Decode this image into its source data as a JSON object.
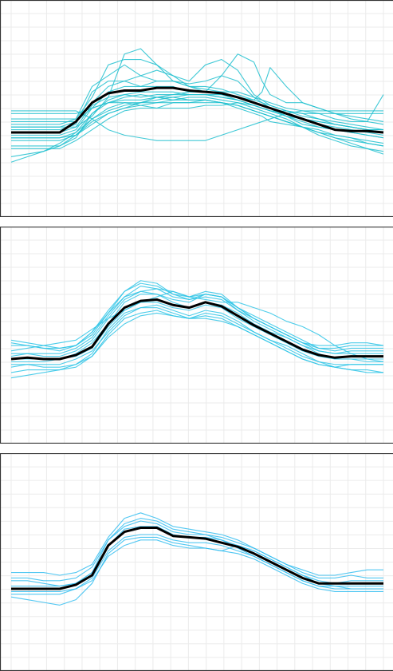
{
  "colors": {
    "grid": "#ebebeb",
    "frame": "#333333",
    "mean": "#000000",
    "panel_1_series": "#1fbfcf",
    "panel_2_series": "#2ec4e6",
    "panel_3_series": "#33bdf0"
  },
  "chart_data": [
    {
      "type": "line",
      "title": "",
      "xlabel": "",
      "ylabel": "",
      "grid": true,
      "legend": "none",
      "xlim": [
        0,
        23
      ],
      "ylim": [
        0,
        8
      ],
      "x": [
        0,
        1,
        2,
        3,
        4,
        5,
        6,
        7,
        8,
        9,
        10,
        11,
        12,
        13,
        14,
        15,
        15.5,
        16,
        17,
        18,
        19,
        20,
        21,
        22,
        23
      ],
      "mean": [
        3.1,
        3.1,
        3.1,
        3.1,
        3.5,
        4.2,
        4.55,
        4.65,
        4.65,
        4.75,
        4.75,
        4.65,
        4.6,
        4.55,
        4.4,
        4.2,
        4.1,
        4.0,
        3.8,
        3.6,
        3.4,
        3.2,
        3.15,
        3.15,
        3.1
      ],
      "series": [
        {
          "values": [
            3.6,
            3.6,
            3.6,
            3.6,
            3.6,
            4.8,
            5.2,
            5.6,
            5.2,
            5.0,
            5.0,
            4.8,
            4.8,
            4.7,
            4.5,
            4.3,
            4.2,
            4.1,
            3.9,
            3.8,
            3.6,
            3.5,
            3.4,
            3.3,
            3.2
          ]
        },
        {
          "values": [
            3.4,
            3.4,
            3.4,
            3.4,
            3.6,
            4.4,
            5.6,
            5.8,
            5.8,
            5.6,
            5.0,
            4.9,
            5.0,
            5.2,
            5.0,
            4.4,
            4.2,
            4.0,
            3.8,
            3.6,
            3.5,
            3.4,
            3.3,
            3.2,
            3.2
          ]
        },
        {
          "values": [
            3.2,
            3.2,
            3.2,
            3.2,
            3.4,
            4.6,
            5.0,
            5.0,
            5.2,
            5.4,
            5.2,
            5.0,
            5.6,
            5.8,
            5.4,
            4.5,
            4.3,
            4.1,
            3.9,
            3.7,
            3.6,
            3.4,
            3.3,
            3.2,
            3.2
          ]
        },
        {
          "values": [
            3.0,
            3.0,
            3.0,
            3.0,
            3.2,
            4.0,
            4.2,
            4.3,
            4.3,
            4.4,
            4.5,
            4.5,
            4.5,
            4.4,
            4.3,
            4.1,
            4.0,
            3.9,
            3.8,
            3.6,
            3.4,
            3.3,
            3.2,
            3.1,
            3.0
          ]
        },
        {
          "values": [
            2.8,
            2.8,
            2.8,
            2.8,
            3.0,
            3.6,
            4.0,
            4.2,
            4.2,
            4.2,
            4.2,
            4.2,
            4.2,
            4.2,
            4.1,
            3.9,
            3.8,
            3.7,
            3.5,
            3.3,
            3.1,
            3.0,
            2.9,
            2.8,
            2.7
          ]
        },
        {
          "values": [
            2.5,
            2.5,
            2.5,
            2.5,
            2.8,
            3.2,
            3.6,
            3.9,
            4.0,
            4.0,
            4.2,
            4.2,
            4.3,
            4.2,
            4.0,
            3.8,
            3.7,
            3.5,
            3.4,
            3.3,
            3.2,
            3.0,
            2.9,
            2.7,
            2.6
          ]
        },
        {
          "values": [
            2.2,
            2.3,
            2.4,
            2.6,
            3.0,
            3.5,
            3.8,
            4.0,
            4.1,
            4.2,
            4.3,
            4.3,
            4.3,
            4.2,
            4.1,
            3.9,
            3.8,
            3.7,
            3.5,
            3.3,
            3.0,
            2.8,
            2.6,
            2.5,
            2.4
          ]
        },
        {
          "values": [
            2.0,
            2.2,
            2.4,
            2.7,
            3.1,
            3.6,
            3.9,
            4.1,
            4.2,
            4.4,
            4.3,
            4.4,
            4.4,
            4.3,
            4.2,
            4.0,
            3.9,
            3.8,
            3.6,
            3.3,
            3.1,
            2.9,
            2.7,
            2.5,
            2.3
          ]
        },
        {
          "values": [
            3.8,
            3.8,
            3.8,
            3.8,
            3.8,
            4.0,
            4.2,
            4.2,
            4.1,
            4.0,
            4.0,
            4.0,
            4.1,
            4.1,
            4.2,
            4.1,
            4.0,
            3.9,
            3.9,
            3.8,
            3.8,
            3.8,
            3.8,
            3.8,
            3.8
          ]
        },
        {
          "values": [
            3.9,
            3.9,
            3.9,
            3.9,
            3.9,
            3.6,
            3.2,
            3.0,
            2.9,
            2.8,
            2.8,
            2.8,
            2.8,
            3.0,
            3.2,
            3.4,
            3.5,
            3.6,
            3.8,
            3.9,
            3.9,
            3.9,
            3.9,
            3.9,
            3.9
          ]
        },
        {
          "values": [
            3.3,
            3.3,
            3.3,
            3.3,
            3.3,
            3.7,
            4.4,
            6.0,
            6.2,
            5.6,
            5.2,
            4.8,
            4.6,
            5.2,
            6.0,
            5.7,
            5.0,
            4.5,
            4.2,
            4.2,
            4.0,
            3.8,
            3.7,
            3.6,
            3.5
          ]
        },
        {
          "values": [
            3.3,
            3.3,
            3.3,
            3.3,
            3.5,
            4.2,
            4.8,
            5.0,
            4.8,
            4.8,
            4.8,
            4.6,
            4.6,
            4.6,
            4.6,
            4.4,
            4.3,
            4.2,
            4.0,
            3.9,
            3.8,
            3.6,
            3.5,
            3.5,
            3.4
          ]
        },
        {
          "values": [
            2.9,
            2.9,
            2.9,
            2.9,
            3.1,
            3.8,
            4.3,
            4.5,
            4.4,
            4.5,
            4.5,
            4.6,
            4.6,
            4.5,
            4.4,
            4.2,
            4.1,
            4.0,
            3.7,
            3.4,
            3.3,
            3.2,
            3.1,
            3.0,
            2.9
          ]
        },
        {
          "values": [
            3.5,
            3.5,
            3.5,
            3.5,
            3.5,
            4.0,
            4.6,
            4.8,
            4.8,
            5.0,
            5.0,
            4.8,
            4.7,
            4.6,
            4.4,
            4.3,
            4.6,
            5.5,
            4.8,
            4.2,
            4.0,
            3.8,
            3.6,
            3.5,
            4.5
          ]
        },
        {
          "values": [
            2.9,
            2.9,
            2.9,
            2.9,
            3.0,
            3.4,
            3.8,
            4.0,
            4.2,
            4.3,
            4.4,
            4.5,
            4.5,
            4.4,
            4.3,
            4.1,
            4.0,
            3.9,
            3.7,
            3.5,
            3.3,
            3.2,
            3.1,
            3.0,
            2.9
          ]
        },
        {
          "values": [
            3.1,
            3.1,
            3.1,
            3.1,
            3.3,
            4.1,
            4.4,
            4.5,
            4.6,
            4.6,
            4.6,
            4.5,
            4.5,
            4.5,
            4.3,
            4.1,
            4.0,
            3.9,
            3.7,
            3.6,
            3.5,
            3.4,
            3.3,
            3.2,
            3.1
          ]
        },
        {
          "values": [
            2.6,
            2.6,
            2.6,
            2.6,
            2.9,
            3.8,
            4.2,
            4.4,
            4.5,
            4.4,
            4.4,
            4.3,
            4.3,
            4.2,
            4.1,
            3.9,
            3.8,
            3.7,
            3.5,
            3.3,
            3.1,
            2.9,
            2.8,
            2.7,
            2.6
          ]
        }
      ]
    },
    {
      "type": "line",
      "title": "",
      "xlabel": "",
      "ylabel": "",
      "grid": true,
      "legend": "none",
      "xlim": [
        0,
        23
      ],
      "ylim": [
        0,
        8
      ],
      "x": [
        0,
        1,
        2,
        3,
        4,
        5,
        6,
        7,
        8,
        9,
        10,
        11,
        12,
        13,
        14,
        15,
        16,
        17,
        18,
        19,
        20,
        21,
        22,
        23
      ],
      "mean": [
        3.1,
        3.15,
        3.1,
        3.1,
        3.25,
        3.55,
        4.4,
        5.0,
        5.25,
        5.3,
        5.1,
        5.0,
        5.2,
        5.05,
        4.7,
        4.35,
        4.05,
        3.75,
        3.45,
        3.25,
        3.15,
        3.2,
        3.2,
        3.2
      ],
      "series": [
        {
          "values": [
            3.6,
            3.6,
            3.5,
            3.5,
            3.6,
            4.0,
            4.8,
            5.4,
            5.6,
            5.7,
            5.6,
            5.4,
            5.6,
            5.5,
            5.0,
            4.7,
            4.4,
            4.1,
            3.8,
            3.5,
            3.4,
            3.5,
            3.5,
            3.5
          ]
        },
        {
          "values": [
            2.8,
            2.9,
            2.8,
            2.8,
            2.9,
            3.2,
            4.0,
            4.6,
            4.8,
            4.9,
            4.7,
            4.6,
            4.7,
            4.6,
            4.3,
            4.0,
            3.7,
            3.4,
            3.1,
            2.9,
            2.8,
            2.9,
            2.9,
            2.9
          ]
        },
        {
          "values": [
            3.3,
            3.3,
            3.2,
            3.2,
            3.4,
            3.8,
            4.6,
            5.3,
            5.6,
            5.5,
            5.3,
            5.2,
            5.5,
            5.4,
            5.0,
            4.6,
            4.3,
            4.0,
            3.7,
            3.4,
            3.3,
            3.4,
            3.4,
            3.4
          ]
        },
        {
          "values": [
            2.6,
            2.7,
            2.7,
            2.7,
            2.9,
            3.3,
            4.2,
            4.8,
            5.0,
            5.1,
            4.9,
            4.7,
            4.9,
            4.8,
            4.5,
            4.1,
            3.8,
            3.5,
            3.2,
            3.0,
            2.8,
            2.7,
            2.7,
            2.6
          ]
        },
        {
          "values": [
            3.8,
            3.7,
            3.6,
            3.5,
            3.6,
            4.1,
            4.8,
            5.6,
            6.0,
            5.9,
            5.5,
            5.3,
            5.4,
            5.3,
            4.9,
            4.6,
            4.3,
            4.0,
            3.7,
            3.6,
            3.6,
            3.7,
            3.7,
            3.6
          ]
        },
        {
          "values": [
            2.4,
            2.5,
            2.6,
            2.7,
            2.8,
            3.2,
            3.9,
            4.4,
            4.7,
            4.8,
            4.7,
            4.6,
            4.6,
            4.5,
            4.3,
            4.0,
            3.7,
            3.4,
            3.1,
            2.9,
            2.8,
            2.7,
            2.6,
            2.6
          ]
        },
        {
          "values": [
            3.0,
            3.0,
            3.0,
            3.1,
            3.3,
            3.7,
            4.4,
            5.2,
            5.5,
            5.5,
            5.2,
            5.0,
            5.2,
            5.1,
            4.8,
            4.4,
            4.1,
            3.9,
            3.6,
            3.3,
            3.1,
            3.1,
            3.0,
            3.0
          ]
        },
        {
          "values": [
            3.4,
            3.5,
            3.6,
            3.7,
            3.8,
            4.2,
            4.6,
            4.9,
            5.2,
            5.4,
            5.6,
            5.4,
            5.3,
            5.2,
            5.2,
            5.0,
            4.8,
            4.5,
            4.3,
            4.0,
            3.6,
            3.3,
            3.1,
            3.0
          ]
        },
        {
          "values": [
            3.2,
            3.3,
            3.3,
            3.3,
            3.5,
            3.9,
            4.7,
            5.4,
            5.8,
            5.7,
            5.4,
            5.3,
            5.5,
            5.4,
            4.9,
            4.5,
            4.2,
            3.9,
            3.6,
            3.4,
            3.3,
            3.3,
            3.3,
            3.3
          ]
        },
        {
          "values": [
            2.9,
            2.9,
            2.9,
            2.9,
            3.1,
            3.4,
            4.1,
            4.7,
            5.0,
            5.0,
            4.8,
            4.6,
            4.8,
            4.7,
            4.4,
            4.1,
            3.8,
            3.6,
            3.3,
            3.0,
            2.9,
            2.9,
            2.9,
            2.9
          ]
        },
        {
          "values": [
            3.7,
            3.6,
            3.5,
            3.4,
            3.6,
            4.1,
            4.9,
            5.6,
            5.9,
            5.8,
            5.5,
            5.4,
            5.5,
            5.4,
            5.0,
            4.6,
            4.3,
            4.0,
            3.7,
            3.5,
            3.5,
            3.6,
            3.6,
            3.6
          ]
        },
        {
          "values": [
            3.1,
            3.1,
            3.1,
            3.1,
            3.2,
            3.5,
            4.3,
            4.9,
            5.2,
            5.2,
            5.0,
            4.9,
            5.1,
            5.0,
            4.6,
            4.3,
            4.0,
            3.7,
            3.4,
            3.2,
            3.1,
            3.1,
            3.1,
            3.1
          ]
        }
      ]
    },
    {
      "type": "line",
      "title": "",
      "xlabel": "",
      "ylabel": "",
      "grid": true,
      "legend": "none",
      "xlim": [
        0,
        23
      ],
      "ylim": [
        0,
        8
      ],
      "x": [
        0,
        1,
        2,
        3,
        4,
        5,
        6,
        7,
        8,
        9,
        10,
        11,
        12,
        13,
        14,
        15,
        16,
        17,
        18,
        19,
        20,
        21,
        22,
        23
      ],
      "mean": [
        3.0,
        3.0,
        3.0,
        3.0,
        3.15,
        3.5,
        4.6,
        5.1,
        5.25,
        5.25,
        4.95,
        4.9,
        4.85,
        4.7,
        4.55,
        4.3,
        4.0,
        3.7,
        3.4,
        3.2,
        3.2,
        3.2,
        3.2,
        3.2
      ],
      "series": [
        {
          "values": [
            3.3,
            3.3,
            3.2,
            3.1,
            3.2,
            3.6,
            4.8,
            5.4,
            5.6,
            5.5,
            5.2,
            5.1,
            5.0,
            4.8,
            4.6,
            4.4,
            4.1,
            3.8,
            3.5,
            3.3,
            3.2,
            3.3,
            3.3,
            3.3
          ]
        },
        {
          "values": [
            2.7,
            2.6,
            2.5,
            2.4,
            2.6,
            3.2,
            4.3,
            4.8,
            4.9,
            4.9,
            4.7,
            4.6,
            4.5,
            4.4,
            4.3,
            4.1,
            3.8,
            3.5,
            3.2,
            3.0,
            2.9,
            2.9,
            2.9,
            2.9
          ]
        },
        {
          "values": [
            3.6,
            3.6,
            3.6,
            3.5,
            3.6,
            3.9,
            4.9,
            5.6,
            5.8,
            5.6,
            5.3,
            5.2,
            5.1,
            5.0,
            4.8,
            4.5,
            4.2,
            3.9,
            3.7,
            3.5,
            3.5,
            3.6,
            3.7,
            3.7
          ]
        },
        {
          "values": [
            2.9,
            2.9,
            2.9,
            2.9,
            3.0,
            3.3,
            4.2,
            4.6,
            4.8,
            4.8,
            4.6,
            4.5,
            4.5,
            4.4,
            4.6,
            4.4,
            4.1,
            3.8,
            3.5,
            3.2,
            3.1,
            3.1,
            3.1,
            3.1
          ]
        },
        {
          "values": [
            3.1,
            3.1,
            3.1,
            3.1,
            3.2,
            3.6,
            4.6,
            5.2,
            5.3,
            5.3,
            5.0,
            4.9,
            4.9,
            4.8,
            4.5,
            4.2,
            3.9,
            3.6,
            3.3,
            3.1,
            3.1,
            3.0,
            3.0,
            3.0
          ]
        },
        {
          "values": [
            3.4,
            3.4,
            3.3,
            3.3,
            3.4,
            3.8,
            4.8,
            5.3,
            5.5,
            5.4,
            5.1,
            5.0,
            5.0,
            4.9,
            4.7,
            4.5,
            4.2,
            3.9,
            3.6,
            3.4,
            3.4,
            3.5,
            3.4,
            3.4
          ]
        },
        {
          "values": [
            2.8,
            2.8,
            2.8,
            2.8,
            3.0,
            3.4,
            4.4,
            4.9,
            5.0,
            5.0,
            4.8,
            4.7,
            4.7,
            4.6,
            4.4,
            4.2,
            3.9,
            3.6,
            3.3,
            3.1,
            3.0,
            3.0,
            3.0,
            3.0
          ]
        }
      ]
    }
  ]
}
